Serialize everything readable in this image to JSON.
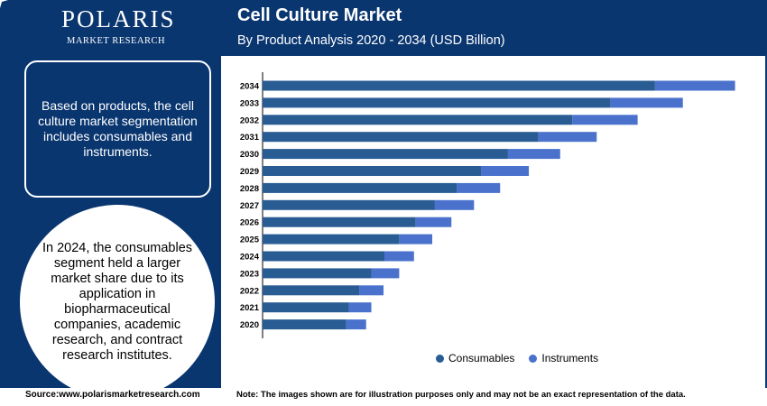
{
  "logo": {
    "title": "POLARIS",
    "subtitle": "MARKET RESEARCH"
  },
  "header": {
    "title": "Cell Culture Market",
    "subtitle": "By Product Analysis 2020 - 2034 (USD Billion)"
  },
  "left": {
    "box_text": "Based on products, the cell culture market segmentation includes consumables and instruments.",
    "circle_text": "In 2024, the consumables segment held a larger market share due to its application in biopharmaceutical companies, academic research, and contract research institutes."
  },
  "footer": {
    "source": "Source:www.polarismarketresearch.com",
    "note": "Note: The images shown are for illustration purposes only and may not be an exact representation of the data."
  },
  "colors": {
    "consumables": "#2a5c94",
    "instruments": "#4a72cc",
    "brand": "#0a3670"
  },
  "chart_data": {
    "type": "bar",
    "orientation": "horizontal",
    "stacked": true,
    "categories": [
      "2034",
      "2033",
      "2032",
      "2031",
      "2030",
      "2029",
      "2028",
      "2027",
      "2026",
      "2025",
      "2024",
      "2023",
      "2022",
      "2021",
      "2020"
    ],
    "series": [
      {
        "name": "Consumables",
        "values": [
          45.1,
          40.0,
          35.6,
          31.7,
          28.2,
          25.1,
          22.3,
          19.8,
          17.6,
          15.7,
          14.0,
          12.5,
          11.1,
          9.9,
          9.6
        ]
      },
      {
        "name": "Instruments",
        "values": [
          9.2,
          8.3,
          7.5,
          6.7,
          6.0,
          5.5,
          5.0,
          4.5,
          4.1,
          3.8,
          3.4,
          3.2,
          2.8,
          2.6,
          2.3
        ]
      }
    ],
    "xlim": [
      0,
      56
    ],
    "legend_position": "bottom"
  }
}
